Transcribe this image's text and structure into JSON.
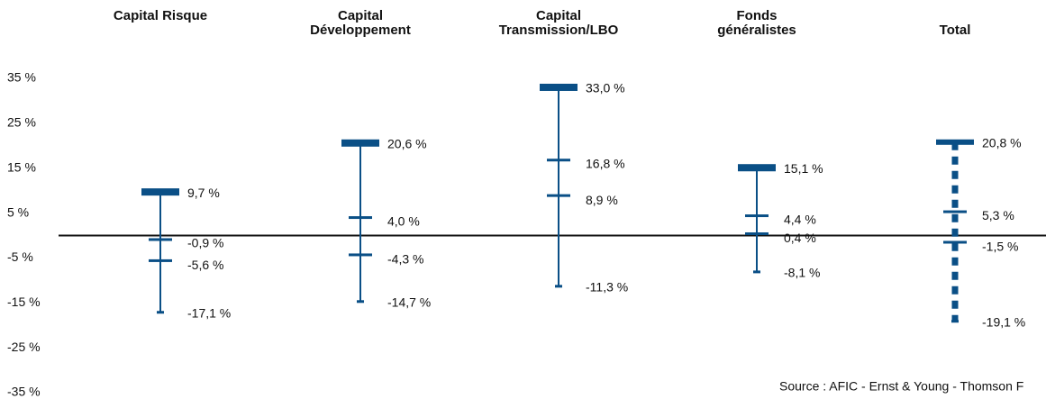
{
  "chart_data": {
    "type": "range",
    "categories": [
      "Capital Risque",
      "Capital Développement",
      "Capital Transmission/LBO",
      "Fonds généralistes",
      "Total"
    ],
    "line_styles": [
      "solid",
      "solid",
      "solid",
      "solid",
      "dashed"
    ],
    "color": "#0a4f86",
    "series": [
      {
        "values": [
          9.7,
          20.6,
          33.0,
          15.1,
          20.8
        ],
        "value_labels": [
          "9,7 %",
          "20,6 %",
          "33,0 %",
          "15,1 %",
          "20,8 %"
        ]
      },
      {
        "values": [
          -0.9,
          4.0,
          16.8,
          4.4,
          5.3
        ],
        "value_labels": [
          "-0,9 %",
          "4,0 %",
          "16,8 %",
          "4,4 %",
          "5,3 %"
        ]
      },
      {
        "values": [
          -5.6,
          -4.3,
          8.9,
          0.4,
          -1.5
        ],
        "value_labels": [
          "-5,6 %",
          "-4,3 %",
          "8,9 %",
          "0,4 %",
          "-1,5 %"
        ]
      },
      {
        "values": [
          -17.1,
          -14.7,
          -11.3,
          -8.1,
          -19.1
        ],
        "value_labels": [
          "-17,1 %",
          "-14,7 %",
          "-11,3 %",
          "-8,1 %",
          "-19,1 %"
        ]
      }
    ],
    "ylim": [
      -35,
      35
    ],
    "yticks": [
      {
        "value": 35,
        "label": "35 %"
      },
      {
        "value": 25,
        "label": "25 %"
      },
      {
        "value": 15,
        "label": "15 %"
      },
      {
        "value": 5,
        "label": "5 %"
      },
      {
        "value": -5,
        "label": "-5 %"
      },
      {
        "value": -15,
        "label": "-15 %"
      },
      {
        "value": -25,
        "label": "-25 %"
      },
      {
        "value": -35,
        "label": "-35 %"
      }
    ],
    "source": "Source : AFIC - Ernst & Young - Thomson F"
  }
}
